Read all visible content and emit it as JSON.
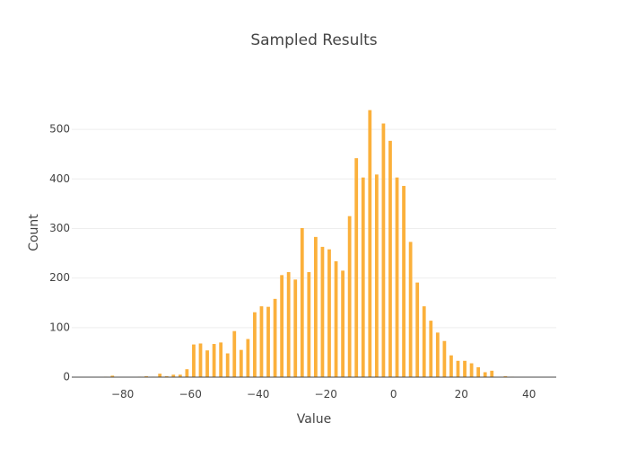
{
  "chart_data": {
    "type": "bar",
    "title": "Sampled Results",
    "xlabel": "Value",
    "ylabel": "Count",
    "xlim": [
      -95,
      48
    ],
    "ylim": [
      0,
      580
    ],
    "bin_width": 2,
    "x_ticks": [
      -80,
      -60,
      -40,
      -20,
      0,
      20,
      40
    ],
    "x_tick_labels": [
      "−80",
      "−60",
      "−40",
      "−20",
      "0",
      "20",
      "40"
    ],
    "y_ticks": [
      0,
      100,
      200,
      300,
      400,
      500
    ],
    "y_tick_labels": [
      "0",
      "100",
      "200",
      "300",
      "400",
      "500"
    ],
    "grid": true,
    "legend": "none",
    "bar_color": "#FBB03B",
    "series": [
      {
        "x": [
          -85,
          -83,
          -75,
          -73,
          -71,
          -69,
          -67,
          -65,
          -63,
          -61,
          -59,
          -57,
          -55,
          -53,
          -51,
          -49,
          -47,
          -45,
          -43,
          -41,
          -39,
          -37,
          -35,
          -33,
          -31,
          -29,
          -27,
          -25,
          -23,
          -21,
          -19,
          -17,
          -15,
          -13,
          -11,
          -9,
          -7,
          -5,
          -3,
          -1,
          1,
          3,
          5,
          7,
          9,
          11,
          13,
          15,
          17,
          19,
          21,
          23,
          25,
          27,
          29,
          33,
          35
        ],
        "values": [
          1,
          3,
          1,
          2,
          1,
          7,
          2,
          5,
          5,
          16,
          66,
          68,
          54,
          67,
          70,
          48,
          93,
          55,
          77,
          131,
          143,
          142,
          158,
          206,
          212,
          197,
          301,
          212,
          283,
          263,
          258,
          234,
          215,
          325,
          442,
          403,
          539,
          409,
          512,
          477,
          403,
          386,
          273,
          191,
          143,
          114,
          90,
          73,
          44,
          33,
          33,
          28,
          20,
          10,
          13,
          2,
          1
        ]
      }
    ]
  }
}
